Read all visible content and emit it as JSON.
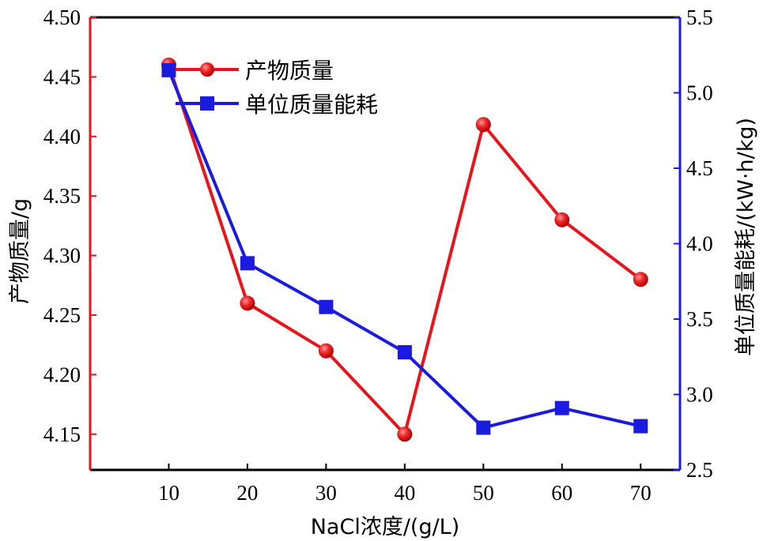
{
  "chart_data": {
    "type": "line",
    "x": [
      10,
      20,
      30,
      40,
      50,
      60,
      70
    ],
    "xlabel": "NaCl浓度/(g/L)",
    "xticks": [
      "10",
      "20",
      "30",
      "40",
      "50",
      "60",
      "70"
    ],
    "xlim": [
      0,
      75
    ],
    "left_axis": {
      "label": "产物质量/g",
      "range": [
        4.12,
        4.5
      ],
      "ticks": [
        "4.15",
        "4.20",
        "4.25",
        "4.30",
        "4.35",
        "4.40",
        "4.45",
        "4.50"
      ],
      "color": "#e8141b"
    },
    "right_axis": {
      "label": "单位质量能耗/(kW·h/kg)",
      "range": [
        2.5,
        5.5
      ],
      "ticks": [
        "2.5",
        "3.0",
        "3.5",
        "4.0",
        "4.5",
        "5.0",
        "5.5"
      ],
      "color": "#1a1ae0"
    },
    "series": [
      {
        "name": "产物质量",
        "axis": "left",
        "marker": "circle",
        "color": "#e8141b",
        "values": [
          4.46,
          4.26,
          4.22,
          4.15,
          4.41,
          4.33,
          4.28
        ]
      },
      {
        "name": "单位质量能耗",
        "axis": "right",
        "marker": "square",
        "color": "#1a1ae0",
        "values": [
          5.15,
          3.87,
          3.58,
          3.28,
          2.78,
          2.91,
          2.79
        ]
      }
    ],
    "legend_position": "top-left-inside",
    "grid": false
  }
}
